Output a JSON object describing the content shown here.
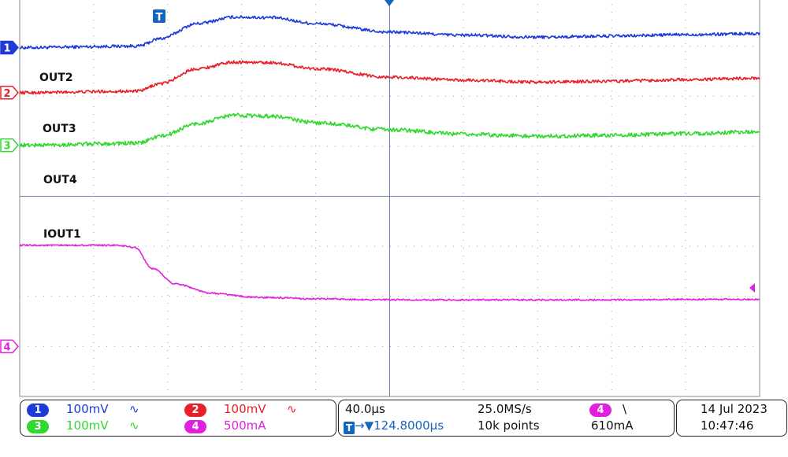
{
  "chart_data": {
    "type": "line",
    "title": "",
    "xlabel": "",
    "ylabel": "",
    "grid": true,
    "x_divisions": 10,
    "y_divisions": 8,
    "x_unit": "div",
    "y_unit": "div",
    "xlim": [
      0,
      10
    ],
    "ylim": [
      0,
      8
    ],
    "series": [
      {
        "name": "OUT2",
        "color": "#1e3ad8",
        "noise": 0.03,
        "x": [
          0,
          1.6,
          1.9,
          2.4,
          2.9,
          3.4,
          4.0,
          5.0,
          6.0,
          7.0,
          8.0,
          9.0,
          10.0
        ],
        "y": [
          6.97,
          7.0,
          7.15,
          7.45,
          7.58,
          7.57,
          7.45,
          7.28,
          7.22,
          7.18,
          7.2,
          7.23,
          7.25
        ]
      },
      {
        "name": "OUT3",
        "color": "#e8202a",
        "noise": 0.03,
        "x": [
          0,
          1.6,
          1.9,
          2.4,
          2.9,
          3.4,
          4.0,
          5.0,
          6.0,
          7.0,
          8.0,
          9.0,
          10.0
        ],
        "y": [
          6.07,
          6.1,
          6.25,
          6.55,
          6.68,
          6.67,
          6.55,
          6.38,
          6.32,
          6.28,
          6.3,
          6.33,
          6.36
        ]
      },
      {
        "name": "OUT4",
        "color": "#30d830",
        "noise": 0.04,
        "x": [
          0,
          1.6,
          1.9,
          2.4,
          2.9,
          3.4,
          4.0,
          5.0,
          6.0,
          7.0,
          8.0,
          9.0,
          10.0
        ],
        "y": [
          5.02,
          5.06,
          5.2,
          5.45,
          5.62,
          5.6,
          5.47,
          5.33,
          5.24,
          5.2,
          5.22,
          5.25,
          5.29
        ]
      },
      {
        "name": "IOUT1",
        "color": "#e020e0",
        "noise": 0.015,
        "x": [
          0,
          1.3,
          1.55,
          1.8,
          2.1,
          2.6,
          3.2,
          4.0,
          5.0,
          6.0,
          7.0,
          8.0,
          9.0,
          10.0
        ],
        "y": [
          3.02,
          3.02,
          2.98,
          2.55,
          2.25,
          2.06,
          1.98,
          1.95,
          1.93,
          1.93,
          1.93,
          1.93,
          1.94,
          1.94
        ]
      }
    ],
    "channel_markers": [
      {
        "num": "1",
        "color": "#1e3ad8",
        "level": 6.97,
        "filled": true
      },
      {
        "num": "2",
        "color": "#e8202a",
        "level": 6.07,
        "filled": false
      },
      {
        "num": "3",
        "color": "#30d830",
        "level": 5.02,
        "filled": false
      },
      {
        "num": "4",
        "color": "#e020e0",
        "level": 1.0,
        "filled": false
      }
    ],
    "trigger_position_div": 1.9,
    "trigger_level_div": 2.2
  },
  "trace_labels": [
    "OUT2",
    "OUT3",
    "OUT4",
    "IOUT1"
  ],
  "trigger_marker": "T",
  "status": {
    "ch1": {
      "num": "1",
      "scale": "100mV",
      "coupling": "∿",
      "color": "#1e3ad8"
    },
    "ch2": {
      "num": "2",
      "scale": "100mV",
      "coupling": "∿",
      "color": "#e8202a"
    },
    "ch3": {
      "num": "3",
      "scale": "100mV",
      "coupling": "∿",
      "color": "#30d830"
    },
    "ch4": {
      "num": "4",
      "scale": "500mA",
      "color": "#e020e0"
    },
    "timebase": "40.0µs",
    "sample_rate": "25.0MS/s",
    "trigger_badge": "T",
    "trigger_offset": "→▼124.8000µs",
    "record_length": "10k points",
    "trig_source": "4",
    "trig_slope": "\\",
    "trig_level": "610mA",
    "date": "14 Jul  2023",
    "time": "10:47:46"
  }
}
